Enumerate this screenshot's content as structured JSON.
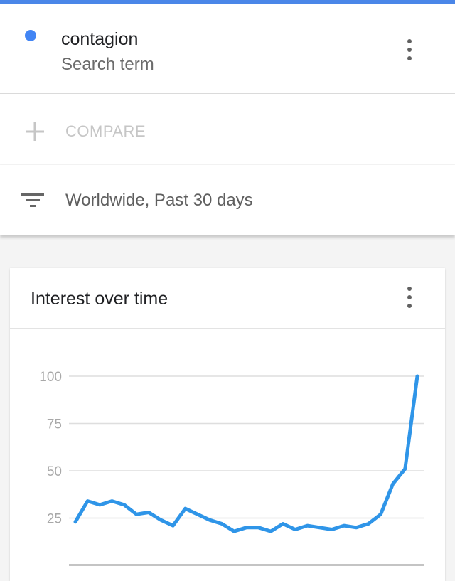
{
  "term": {
    "name": "contagion",
    "type_label": "Search term",
    "dot_color": "#4285f4",
    "menu_icon": "more-vert-icon"
  },
  "compare": {
    "icon": "plus-icon",
    "label": "COMPARE"
  },
  "filter": {
    "icon": "filter-list-icon",
    "text": "Worldwide, Past 30 days"
  },
  "card": {
    "title": "Interest over time",
    "menu_icon": "more-vert-icon"
  },
  "colors": {
    "accent_bar": "#4a86e8",
    "series_line": "#2f95e8"
  },
  "chart_data": {
    "type": "line",
    "ylim": [
      0,
      100
    ],
    "yticks": [
      25,
      50,
      75,
      100
    ],
    "grid": true,
    "series": [
      {
        "color": "#2f95e8",
        "values": [
          23,
          34,
          32,
          34,
          32,
          27,
          28,
          24,
          21,
          30,
          27,
          24,
          22,
          18,
          20,
          20,
          18,
          22,
          19,
          21,
          20,
          19,
          21,
          20,
          22,
          27,
          43,
          51,
          100
        ]
      }
    ]
  }
}
